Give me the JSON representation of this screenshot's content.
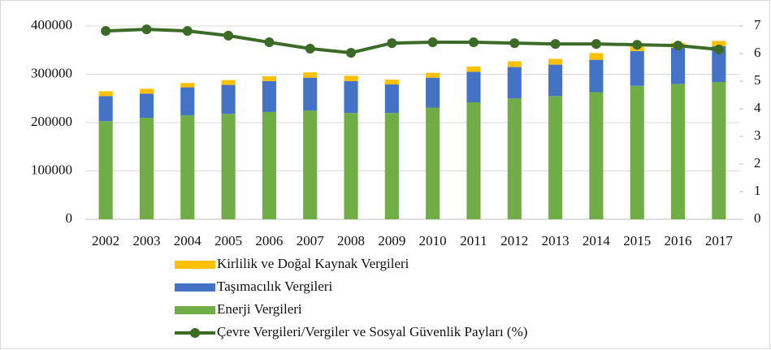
{
  "chart_data": {
    "type": "bar",
    "categories": [
      "2002",
      "2003",
      "2004",
      "2005",
      "2006",
      "2007",
      "2008",
      "2009",
      "2010",
      "2011",
      "2012",
      "2013",
      "2014",
      "2015",
      "2016",
      "2017"
    ],
    "series": [
      {
        "name": "Kirlilik ve Doğal Kaynak Vergileri",
        "color": "#ffc000",
        "values": [
          10000,
          10000,
          9000,
          10000,
          10000,
          11000,
          11000,
          10000,
          10000,
          11000,
          12000,
          12000,
          14000,
          12000,
          10000,
          11000
        ]
      },
      {
        "name": "Taşımacılık Vergileri",
        "color": "#4472c4",
        "values": [
          52000,
          50000,
          58000,
          60000,
          64000,
          68000,
          66000,
          59000,
          62000,
          63000,
          65000,
          65000,
          67000,
          72000,
          75000,
          74000
        ]
      },
      {
        "name": "Enerji Vergileri",
        "color": "#70ad47",
        "values": [
          203000,
          210000,
          215000,
          218000,
          222000,
          225000,
          220000,
          220000,
          231000,
          242000,
          250000,
          255000,
          263000,
          276000,
          280000,
          284000
        ]
      },
      {
        "name": "Çevre Vergileri/Vergiler ve Sosyal Güvenlik Payları (%)",
        "color": "#3b6b27",
        "type": "line",
        "axis": "y2",
        "values": [
          6.82,
          6.88,
          6.82,
          6.65,
          6.41,
          6.18,
          6.03,
          6.38,
          6.41,
          6.41,
          6.38,
          6.35,
          6.35,
          6.32,
          6.29,
          6.15
        ]
      }
    ],
    "ylim": [
      0,
      400000
    ],
    "yticks": [
      0,
      100000,
      200000,
      300000,
      400000
    ],
    "y2lim": [
      0,
      7
    ],
    "y2ticks": [
      0,
      1,
      2,
      3,
      4,
      5,
      6,
      7
    ],
    "grid": true,
    "legend": "bottom"
  }
}
